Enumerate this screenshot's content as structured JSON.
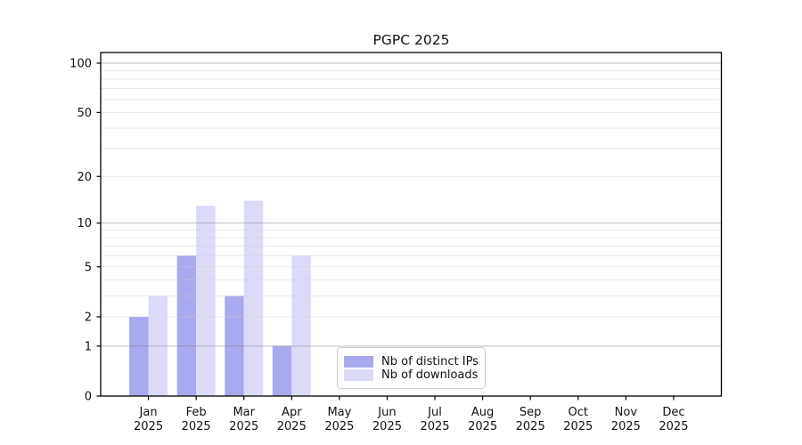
{
  "title": "PGPC 2025",
  "chart_data": {
    "type": "bar",
    "title": "PGPC 2025",
    "x_axis": {
      "categories": [
        "Jan",
        "Feb",
        "Mar",
        "Apr",
        "May",
        "Jun",
        "Jul",
        "Aug",
        "Sep",
        "Oct",
        "Nov",
        "Dec"
      ],
      "year_label": "2025"
    },
    "y_axis": {
      "scale": "log1p",
      "ticks": [
        0,
        1,
        2,
        5,
        10,
        20,
        50,
        100
      ],
      "range": [
        0,
        116
      ]
    },
    "grid": {
      "major_lines": [
        1,
        10,
        100
      ],
      "minor_lines": [
        2,
        3,
        4,
        5,
        6,
        7,
        8,
        9,
        20,
        30,
        40,
        50,
        60,
        70,
        80,
        90
      ]
    },
    "series": [
      {
        "name": "Nb of distinct IPs",
        "color": "#a9a9f0",
        "values": [
          2,
          6,
          3,
          1,
          0,
          0,
          0,
          0,
          0,
          0,
          0,
          0
        ]
      },
      {
        "name": "Nb of downloads",
        "color": "#dbdbf8",
        "values": [
          3,
          13,
          14,
          6,
          0,
          0,
          0,
          0,
          0,
          0,
          0,
          0
        ]
      }
    ],
    "legend": {
      "position": "bottom-center",
      "items": [
        "Nb of distinct IPs",
        "Nb of downloads"
      ]
    }
  },
  "colors": {
    "background": "#ffffff",
    "spine": "#000000",
    "grid_major": "#808080",
    "grid_minor": "#cccccc",
    "text": "#111111"
  }
}
